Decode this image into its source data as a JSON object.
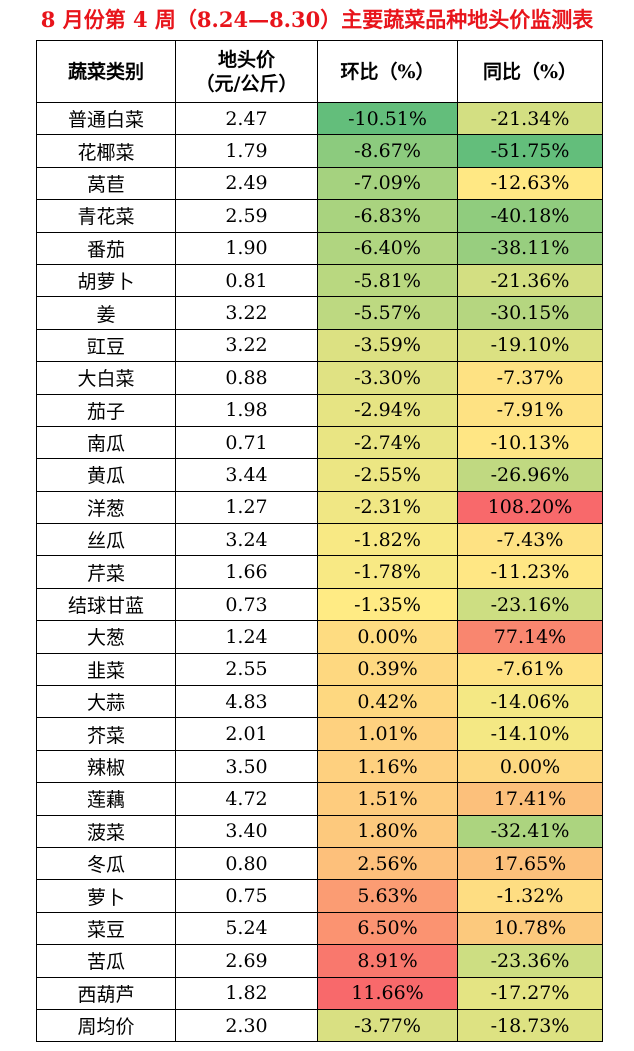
{
  "title": "8 月份第 4 周（8.24—8.30）主要蔬菜品种地头价监测表",
  "headers": {
    "category": "蔬菜类别",
    "price_line1": "地头价",
    "price_line2": "（元/公斤）",
    "mom": "环比（%）",
    "yoy": "同比（%）"
  },
  "rows": [
    {
      "name": "普通白菜",
      "price": "2.47",
      "mom": "-10.51%",
      "yoy": "-21.34%",
      "mom_color": "#63be7b",
      "yoy_color": "#d3df82"
    },
    {
      "name": "花椰菜",
      "price": "1.79",
      "mom": "-8.67%",
      "yoy": "-51.75%",
      "mom_color": "#8ccb7e",
      "yoy_color": "#63be7b"
    },
    {
      "name": "莴苣",
      "price": "2.49",
      "mom": "-7.09%",
      "yoy": "-12.63%",
      "mom_color": "#a5d27f",
      "yoy_color": "#ffe884"
    },
    {
      "name": "青花菜",
      "price": "2.59",
      "mom": "-6.83%",
      "yoy": "-40.18%",
      "mom_color": "#a9d37f",
      "yoy_color": "#90cc7e"
    },
    {
      "name": "番茄",
      "price": "1.90",
      "mom": "-6.40%",
      "yoy": "-38.11%",
      "mom_color": "#b0d580",
      "yoy_color": "#98ce7f"
    },
    {
      "name": "胡萝卜",
      "price": "0.81",
      "mom": "-5.81%",
      "yoy": "-21.36%",
      "mom_color": "#b9d880",
      "yoy_color": "#d3df82"
    },
    {
      "name": "姜",
      "price": "3.22",
      "mom": "-5.57%",
      "yoy": "-30.15%",
      "mom_color": "#bdd981",
      "yoy_color": "#b5d680"
    },
    {
      "name": "豇豆",
      "price": "3.22",
      "mom": "-3.59%",
      "yoy": "-19.10%",
      "mom_color": "#dce182",
      "yoy_color": "#dbe182"
    },
    {
      "name": "大白菜",
      "price": "0.88",
      "mom": "-3.30%",
      "yoy": "-7.37%",
      "mom_color": "#e0e283",
      "yoy_color": "#fee283"
    },
    {
      "name": "茄子",
      "price": "1.98",
      "mom": "-2.94%",
      "yoy": "-7.91%",
      "mom_color": "#e6e483",
      "yoy_color": "#fee283"
    },
    {
      "name": "南瓜",
      "price": "0.71",
      "mom": "-2.74%",
      "yoy": "-10.13%",
      "mom_color": "#e9e583",
      "yoy_color": "#ffe684"
    },
    {
      "name": "黄瓜",
      "price": "3.44",
      "mom": "-2.55%",
      "yoy": "-26.96%",
      "mom_color": "#ece683",
      "yoy_color": "#c0d981"
    },
    {
      "name": "洋葱",
      "price": "1.27",
      "mom": "-2.31%",
      "yoy": "108.20%",
      "mom_color": "#f0e784",
      "yoy_color": "#f8696b"
    },
    {
      "name": "丝瓜",
      "price": "3.24",
      "mom": "-1.82%",
      "yoy": "-7.43%",
      "mom_color": "#f8e984",
      "yoy_color": "#fee283"
    },
    {
      "name": "芹菜",
      "price": "1.66",
      "mom": "-1.78%",
      "yoy": "-11.23%",
      "mom_color": "#f8e984",
      "yoy_color": "#ffe784"
    },
    {
      "name": "结球甘蓝",
      "price": "0.73",
      "mom": "-1.35%",
      "yoy": "-23.16%",
      "mom_color": "#ffeb84",
      "yoy_color": "#cdde82"
    },
    {
      "name": "大葱",
      "price": "1.24",
      "mom": "0.00%",
      "yoy": "77.14%",
      "mom_color": "#fedc81",
      "yoy_color": "#f9866f"
    },
    {
      "name": "韭菜",
      "price": "2.55",
      "mom": "0.39%",
      "yoy": "-7.61%",
      "mom_color": "#fed880",
      "yoy_color": "#fee283"
    },
    {
      "name": "大蒜",
      "price": "4.83",
      "mom": "0.42%",
      "yoy": "-14.06%",
      "mom_color": "#fed880",
      "yoy_color": "#f4e884"
    },
    {
      "name": "芥菜",
      "price": "2.01",
      "mom": "1.01%",
      "yoy": "-14.10%",
      "mom_color": "#fed17f",
      "yoy_color": "#f4e884"
    },
    {
      "name": "辣椒",
      "price": "3.50",
      "mom": "1.16%",
      "yoy": "0.00%",
      "mom_color": "#fed07f",
      "yoy_color": "#fdd880"
    },
    {
      "name": "莲藕",
      "price": "4.72",
      "mom": "1.51%",
      "yoy": "17.41%",
      "mom_color": "#fecc7e",
      "yoy_color": "#fcc07b"
    },
    {
      "name": "菠菜",
      "price": "3.40",
      "mom": "1.80%",
      "yoy": "-32.41%",
      "mom_color": "#fdc97d",
      "yoy_color": "#acd47f"
    },
    {
      "name": "冬瓜",
      "price": "0.80",
      "mom": "2.56%",
      "yoy": "17.65%",
      "mom_color": "#fdc07b",
      "yoy_color": "#fcc07b"
    },
    {
      "name": "萝卜",
      "price": "0.75",
      "mom": "5.63%",
      "yoy": "-1.32%",
      "mom_color": "#fb9c73",
      "yoy_color": "#fedd82"
    },
    {
      "name": "菜豆",
      "price": "5.24",
      "mom": "6.50%",
      "yoy": "10.78%",
      "mom_color": "#fb9371",
      "yoy_color": "#fcc97d"
    },
    {
      "name": "苦瓜",
      "price": "2.69",
      "mom": "8.91%",
      "yoy": "-23.36%",
      "mom_color": "#f9786d",
      "yoy_color": "#cdde82"
    },
    {
      "name": "西葫芦",
      "price": "1.82",
      "mom": "11.66%",
      "yoy": "-17.27%",
      "mom_color": "#f8696b",
      "yoy_color": "#e4e483"
    },
    {
      "name": "周均价",
      "price": "2.30",
      "mom": "-3.77%",
      "yoy": "-18.73%",
      "mom_color": "#d9e082",
      "yoy_color": "#dde282"
    }
  ]
}
